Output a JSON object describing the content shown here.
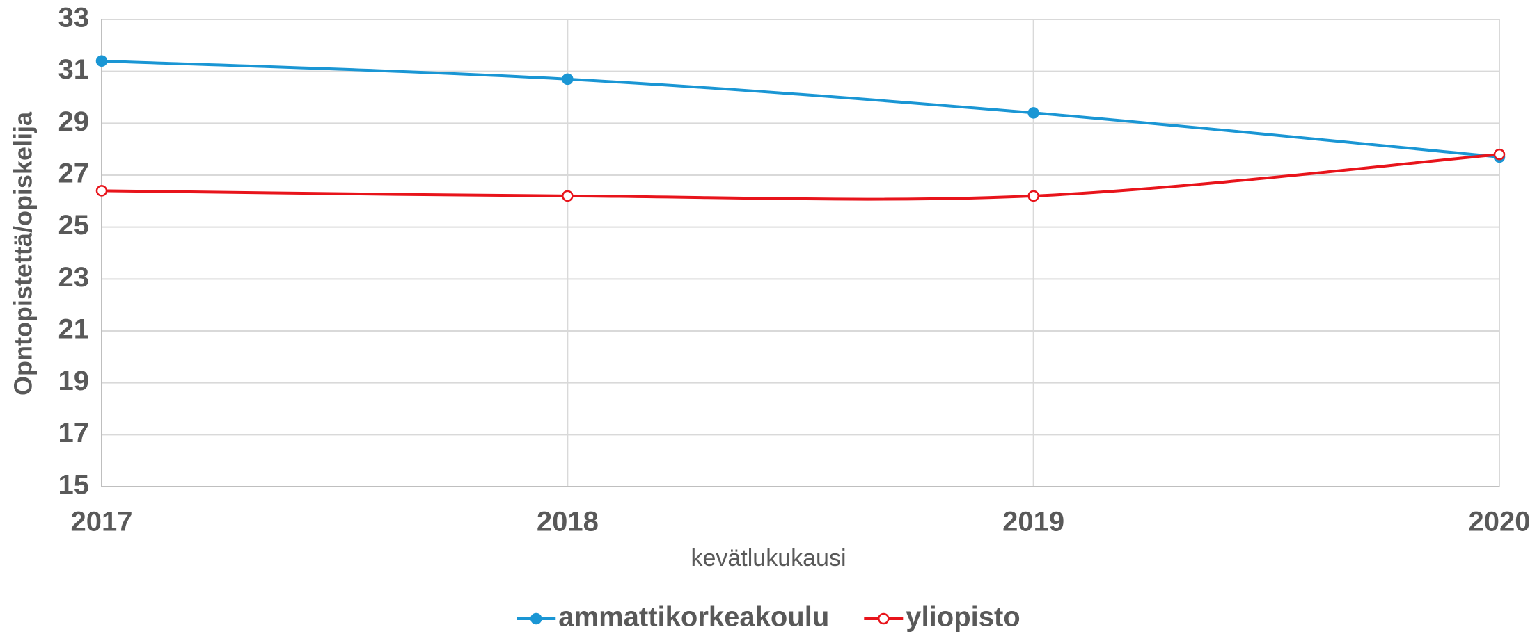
{
  "chart_data": {
    "type": "line",
    "x": [
      2017,
      2018,
      2019,
      2020
    ],
    "xlabel": "kevätlukukausi",
    "ylabel": "Opntopistettä/opiskelija",
    "xlim": [
      2017,
      2020
    ],
    "xticks": [
      2017,
      2018,
      2019,
      2020
    ],
    "ylim": [
      15,
      33
    ],
    "yticks": [
      15,
      17,
      19,
      21,
      23,
      25,
      27,
      29,
      31,
      33
    ],
    "grid": true,
    "legend": "bottom",
    "series": [
      {
        "name": "ammattikorkeakoulu",
        "color": "#1a96d4",
        "values": [
          31.4,
          30.7,
          29.4,
          27.7
        ]
      },
      {
        "name": "yliopisto",
        "color": "#e8141b",
        "values": [
          26.4,
          26.2,
          26.2,
          27.8
        ]
      }
    ]
  }
}
